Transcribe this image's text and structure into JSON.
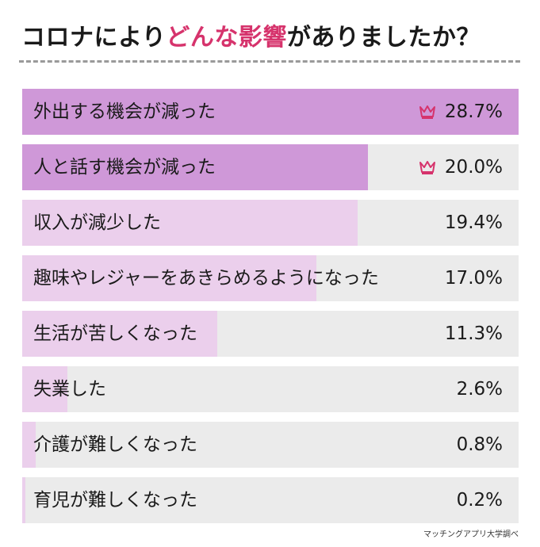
{
  "title": {
    "before": "コロナにより",
    "highlight": "どんな影響",
    "after": "がありましたか？"
  },
  "colors": {
    "top_fill": "#cf98d8",
    "other_fill": "#ebcfec",
    "track": "#ebebeb",
    "crown": "#d6336c",
    "title_highlight": "#d6336c"
  },
  "chart_data": {
    "type": "bar",
    "orientation": "horizontal",
    "unit": "%",
    "xlim": [
      0,
      28.7
    ],
    "categories": [
      "外出する機会が減った",
      "人と話す機会が減った",
      "収入が減少した",
      "趣味やレジャーをあきらめるようになった",
      "生活が苦しくなった",
      "失業した",
      "介護が難しくなった",
      "育児が難しくなった"
    ],
    "values": [
      28.7,
      20.0,
      19.4,
      17.0,
      11.3,
      2.6,
      0.8,
      0.2
    ],
    "value_labels": [
      "28.7%",
      "20.0%",
      "19.4%",
      "17.0%",
      "11.3%",
      "2.6%",
      "0.8%",
      "0.2%"
    ],
    "crowned": [
      true,
      true,
      false,
      false,
      false,
      false,
      false,
      false
    ]
  },
  "source": "マッチングアプリ大学調べ"
}
